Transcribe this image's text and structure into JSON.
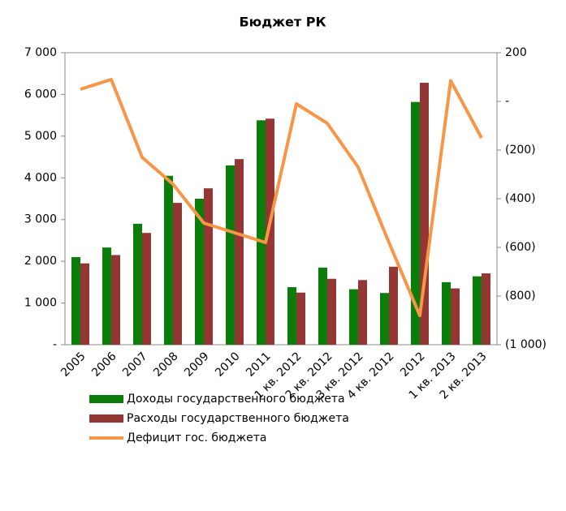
{
  "chart_data": {
    "type": "bar_line",
    "title": "Бюджет РК",
    "categories": [
      "2005",
      "2006",
      "2007",
      "2008",
      "2009",
      "2010",
      "2011",
      "1 кв. 2012",
      "2 кв. 2012",
      "3 кв. 2012",
      "4 кв. 2012",
      "2012",
      "1 кв. 2013",
      "2 кв. 2013"
    ],
    "series": [
      {
        "name": "Доходы государственного бюджета",
        "color": "#0a7d0a",
        "type": "bar",
        "values": [
          2100,
          2330,
          2900,
          4050,
          3500,
          4300,
          5380,
          1380,
          1850,
          1330,
          1240,
          5820,
          1500,
          1640
        ]
      },
      {
        "name": "Расходы государственного бюджета",
        "color": "#943634",
        "type": "bar",
        "values": [
          1950,
          2150,
          2680,
          3400,
          3750,
          4450,
          5420,
          1250,
          1580,
          1550,
          1870,
          6280,
          1350,
          1710
        ]
      },
      {
        "name": "Дефицит гос. бюджета",
        "color": "#f79646",
        "type": "line",
        "axis": "y2",
        "values": [
          50,
          90,
          -230,
          -340,
          -500,
          -540,
          -580,
          -10,
          -90,
          -270,
          -580,
          -880,
          85,
          -150
        ]
      }
    ],
    "ylim": [
      0,
      7000
    ],
    "yticks": [
      {
        "value": 0,
        "label": "-"
      },
      {
        "value": 1000,
        "label": "1 000"
      },
      {
        "value": 2000,
        "label": "2 000"
      },
      {
        "value": 3000,
        "label": "3 000"
      },
      {
        "value": 4000,
        "label": "4 000"
      },
      {
        "value": 5000,
        "label": "5 000"
      },
      {
        "value": 6000,
        "label": "6 000"
      },
      {
        "value": 7000,
        "label": "7 000"
      }
    ],
    "y2lim": [
      -1000,
      200
    ],
    "y2ticks": [
      {
        "value": -1000,
        "label": "(1 000)"
      },
      {
        "value": -800,
        "label": "(800)"
      },
      {
        "value": -600,
        "label": "(600)"
      },
      {
        "value": -400,
        "label": "(400)"
      },
      {
        "value": -200,
        "label": "(200)"
      },
      {
        "value": 0,
        "label": "-"
      },
      200
    ],
    "legend": "bottom"
  }
}
